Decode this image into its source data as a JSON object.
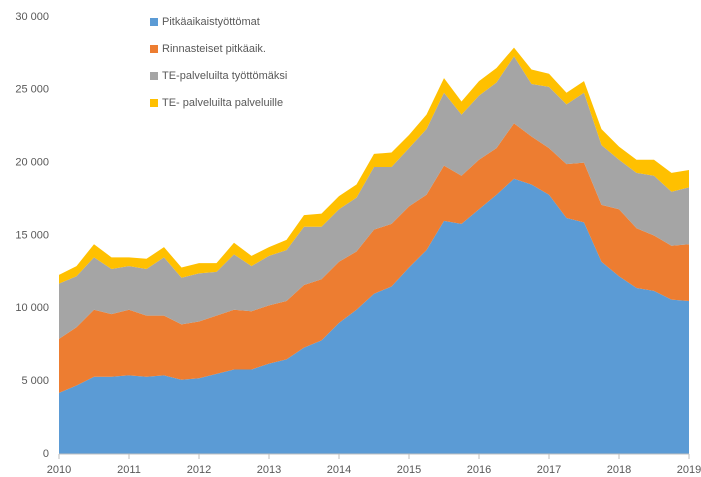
{
  "chart_data": {
    "type": "stacked_area",
    "x": [
      2010,
      2010.25,
      2010.5,
      2010.75,
      2011,
      2011.25,
      2011.5,
      2011.75,
      2012,
      2012.25,
      2012.5,
      2012.75,
      2013,
      2013.25,
      2013.5,
      2013.75,
      2014,
      2014.25,
      2014.5,
      2014.75,
      2015,
      2015.25,
      2015.5,
      2015.75,
      2016,
      2016.25,
      2016.5,
      2016.75,
      2017,
      2017.25,
      2017.5,
      2017.75,
      2018,
      2018.25,
      2018.5,
      2018.75,
      2019
    ],
    "xlim": [
      2010,
      2019
    ],
    "xticks": [
      2010,
      2011,
      2012,
      2013,
      2014,
      2015,
      2016,
      2017,
      2018,
      2019
    ],
    "ylim": [
      0,
      30000
    ],
    "yticks": [
      0,
      {
        "value": 5000,
        "label": "5 000"
      },
      {
        "value": 10000,
        "label": "10 000"
      },
      {
        "value": 15000,
        "label": "15 000"
      },
      {
        "value": 20000,
        "label": "20 000"
      },
      {
        "value": 25000,
        "label": "25 000"
      },
      {
        "value": 30000,
        "label": "30 000"
      }
    ],
    "grid": false,
    "series": [
      {
        "name": "Pitkäaikaistyöttömat",
        "color": "#5b9bd5",
        "values": [
          4200,
          4700,
          5300,
          5300,
          5400,
          5300,
          5400,
          5100,
          5200,
          5500,
          5800,
          5800,
          6200,
          6500,
          7300,
          7800,
          9000,
          9900,
          11000,
          11500,
          12800,
          14000,
          16000,
          15800,
          16800,
          17800,
          18900,
          18500,
          17800,
          16200,
          15900,
          13200,
          12200,
          11400,
          11200,
          10600,
          10500
        ]
      },
      {
        "name": "Rinnasteiset pitkäaik.",
        "color": "#ed7d31",
        "values": [
          3700,
          4000,
          4600,
          4300,
          4500,
          4200,
          4100,
          3800,
          3900,
          4000,
          4100,
          4000,
          4000,
          4000,
          4300,
          4200,
          4200,
          4000,
          4400,
          4300,
          4200,
          3800,
          3800,
          3300,
          3400,
          3200,
          3800,
          3300,
          3200,
          3700,
          4100,
          3900,
          4600,
          4100,
          3800,
          3700,
          3900
        ]
      },
      {
        "name": "TE-palveluilta työttömäksi",
        "color": "#a5a5a5",
        "values": [
          3800,
          3500,
          3600,
          3100,
          3000,
          3200,
          4000,
          3200,
          3300,
          3000,
          3800,
          3100,
          3400,
          3500,
          4000,
          3600,
          3600,
          3700,
          4300,
          3900,
          4000,
          4500,
          5000,
          4200,
          4400,
          4500,
          4600,
          3600,
          4200,
          4100,
          4800,
          4100,
          3400,
          3800,
          4100,
          3700,
          3900
        ]
      },
      {
        "name": "TE- palveluilta palveluille",
        "color": "#ffc000",
        "values": [
          600,
          700,
          900,
          800,
          600,
          700,
          700,
          700,
          700,
          600,
          800,
          700,
          600,
          700,
          800,
          900,
          900,
          900,
          900,
          1000,
          900,
          1000,
          1000,
          900,
          1000,
          1000,
          600,
          1000,
          900,
          800,
          800,
          1100,
          900,
          900,
          1100,
          1300,
          1200
        ]
      }
    ]
  }
}
